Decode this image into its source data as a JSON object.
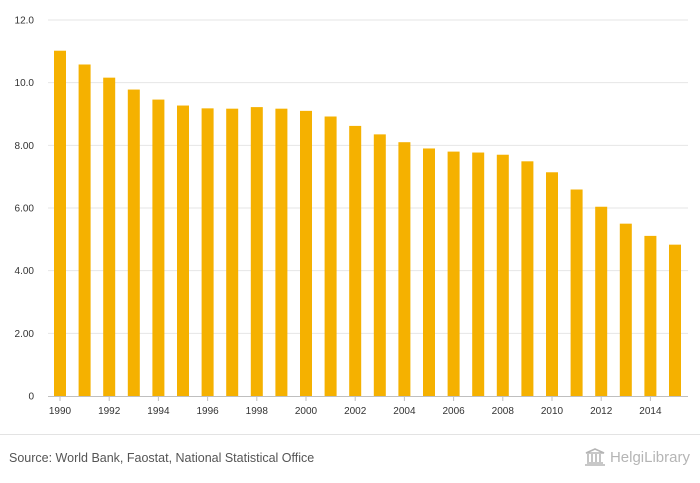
{
  "chart_data": {
    "type": "bar",
    "categories": [
      "1990",
      "1991",
      "1992",
      "1993",
      "1994",
      "1995",
      "1996",
      "1997",
      "1998",
      "1999",
      "2000",
      "2001",
      "2002",
      "2003",
      "2004",
      "2005",
      "2006",
      "2007",
      "2008",
      "2009",
      "2010",
      "2011",
      "2012",
      "2013",
      "2014",
      "2015"
    ],
    "x_tick_labels": [
      "1990",
      "1992",
      "1994",
      "1996",
      "1998",
      "2000",
      "2002",
      "2004",
      "2006",
      "2008",
      "2010",
      "2012",
      "2014"
    ],
    "values": [
      11.02,
      10.58,
      10.16,
      9.78,
      9.46,
      9.27,
      9.18,
      9.17,
      9.22,
      9.17,
      9.1,
      8.92,
      8.62,
      8.35,
      8.1,
      7.9,
      7.8,
      7.77,
      7.7,
      7.49,
      7.14,
      6.59,
      6.04,
      5.5,
      5.11,
      4.83
    ],
    "y_ticks": [
      0,
      2,
      4,
      6,
      8,
      10,
      12
    ],
    "y_tick_labels": [
      "0",
      "2.00",
      "4.00",
      "6.00",
      "8.00",
      "10.0",
      "12.0"
    ],
    "ylim": [
      0,
      12
    ],
    "title": "",
    "xlabel": "",
    "ylabel": "",
    "grid": true,
    "legend": "none"
  },
  "colors": {
    "bar": "#f5b100",
    "grid": "#e6e6e6",
    "axis": "#bfbfbf"
  },
  "footer": {
    "source": "Source: World Bank, Faostat, National Statistical Office",
    "brand": "HelgiLibrary"
  }
}
